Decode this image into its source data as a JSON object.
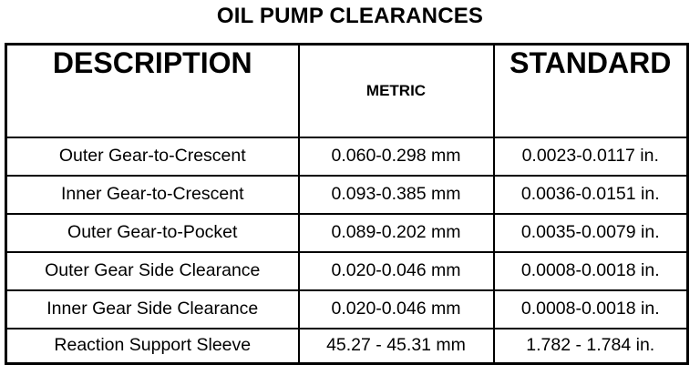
{
  "title": "OIL PUMP CLEARANCES",
  "table": {
    "headers": {
      "description": "DESCRIPTION",
      "metric": "METRIC",
      "standard": "STANDARD"
    },
    "rows": [
      {
        "description": "Outer Gear-to-Crescent",
        "metric": "0.060-0.298 mm",
        "standard": "0.0023-0.0117 in."
      },
      {
        "description": "Inner Gear-to-Crescent",
        "metric": "0.093-0.385 mm",
        "standard": "0.0036-0.0151 in."
      },
      {
        "description": "Outer Gear-to-Pocket",
        "metric": "0.089-0.202 mm",
        "standard": "0.0035-0.0079 in."
      },
      {
        "description": "Outer Gear Side Clearance",
        "metric": "0.020-0.046 mm",
        "standard": "0.0008-0.0018 in."
      },
      {
        "description": "Inner Gear Side Clearance",
        "metric": "0.020-0.046 mm",
        "standard": "0.0008-0.0018 in."
      },
      {
        "description": "Reaction Support Sleeve",
        "metric": "45.27 - 45.31 mm",
        "standard": "1.782 - 1.784 in."
      }
    ]
  }
}
